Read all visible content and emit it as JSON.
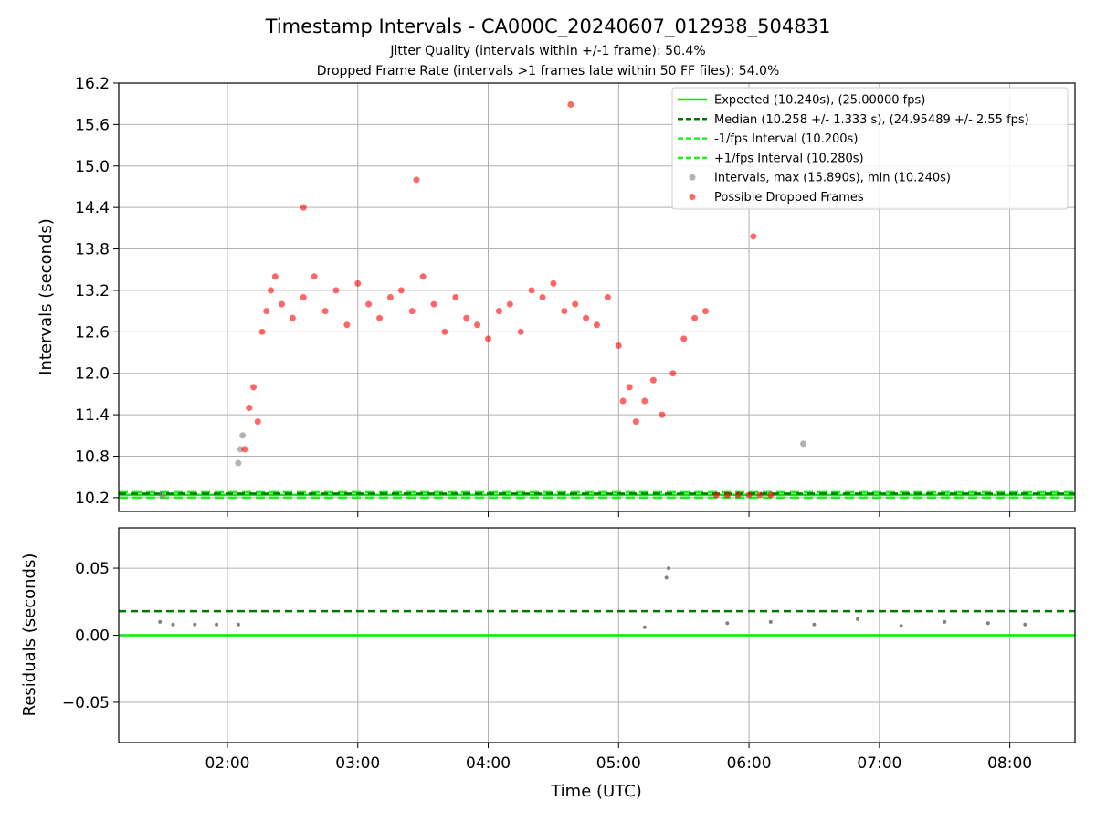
{
  "chart_data": [
    {
      "type": "scatter",
      "title": "Timestamp Intervals - CA000C_20240607_012938_504831",
      "subtitle_1": "Jitter Quality (intervals within +/-1 frame): 50.4%",
      "subtitle_2": "Dropped Frame Rate (intervals >1 frames late within 50 FF files): 54.0%",
      "ylabel": "Intervals (seconds)",
      "ylim": [
        10.0,
        16.2
      ],
      "xlim": [
        "01:10",
        "08:30"
      ],
      "y_ticks": [
        "10.2",
        "10.8",
        "11.4",
        "12.0",
        "12.6",
        "13.2",
        "13.8",
        "14.4",
        "15.0",
        "15.6",
        "16.2"
      ],
      "grid": true,
      "legend_position": "top-right",
      "legend": [
        "Expected (10.240s), (25.00000 fps)",
        "Median (10.258 +/- 1.333 s), (24.95489 +/- 2.55 fps)",
        "-1/fps Interval (10.200s)",
        "+1/fps Interval (10.280s)",
        "Intervals, max (15.890s), min (10.240s)",
        "Possible Dropped Frames"
      ],
      "lines": {
        "expected": 10.24,
        "median": 10.258,
        "minus_one_frame": 10.2,
        "plus_one_frame": 10.28
      },
      "colors": {
        "expected": "#00ee00",
        "median": "#007700",
        "bounds": "#22ee22",
        "intervals": "#808080",
        "dropped": "#ff0000"
      },
      "series": [
        {
          "name": "Intervals, max (15.890s), min (10.240s)",
          "x": [
            "01:30",
            "02:05",
            "02:06",
            "02:07",
            "06:25"
          ],
          "y": [
            10.24,
            10.7,
            10.9,
            11.1,
            10.98
          ]
        },
        {
          "name": "Possible Dropped Frames",
          "x": [
            "02:08",
            "02:10",
            "02:12",
            "02:14",
            "02:16",
            "02:18",
            "02:20",
            "02:22",
            "02:25",
            "02:30",
            "02:35",
            "02:40",
            "02:45",
            "02:50",
            "02:55",
            "03:00",
            "03:05",
            "03:10",
            "03:15",
            "03:20",
            "03:25",
            "03:30",
            "03:35",
            "03:40",
            "03:45",
            "03:50",
            "03:55",
            "04:00",
            "04:05",
            "04:10",
            "04:15",
            "04:20",
            "04:25",
            "04:30",
            "04:35",
            "04:40",
            "04:45",
            "04:50",
            "04:55",
            "05:00",
            "05:02",
            "05:05",
            "05:08",
            "05:12",
            "05:16",
            "05:20",
            "05:25",
            "05:30",
            "05:35",
            "05:40",
            "05:45",
            "05:50",
            "05:55",
            "06:00",
            "06:05",
            "06:10",
            "04:38",
            "02:35",
            "03:27",
            "06:02"
          ],
          "y": [
            10.9,
            11.5,
            11.8,
            11.3,
            12.6,
            12.9,
            13.2,
            13.4,
            13.0,
            12.8,
            13.1,
            13.4,
            12.9,
            13.2,
            12.7,
            13.3,
            13.0,
            12.8,
            13.1,
            13.2,
            12.9,
            13.4,
            13.0,
            12.6,
            13.1,
            12.8,
            12.7,
            12.5,
            12.9,
            13.0,
            12.6,
            13.2,
            13.1,
            13.3,
            12.9,
            13.0,
            12.8,
            12.7,
            13.1,
            12.4,
            11.6,
            11.8,
            11.3,
            11.6,
            11.9,
            11.4,
            12.0,
            12.5,
            12.8,
            12.9,
            10.24,
            10.24,
            10.24,
            10.24,
            10.24,
            10.24,
            15.89,
            14.4,
            14.8,
            13.98
          ]
        }
      ]
    },
    {
      "type": "scatter",
      "xlabel": "Time (UTC)",
      "ylabel": "Residuals (seconds)",
      "ylim": [
        -0.08,
        0.08
      ],
      "y_ticks": [
        "−0.05",
        "0.00",
        "0.05"
      ],
      "x_ticks": [
        "02:00",
        "03:00",
        "04:00",
        "05:00",
        "06:00",
        "07:00",
        "08:00"
      ],
      "lines": {
        "zero": 0.0,
        "median": 0.018
      },
      "series": [
        {
          "name": "residuals",
          "x": [
            "01:29",
            "01:35",
            "01:45",
            "01:55",
            "02:05",
            "05:12",
            "05:22",
            "05:23",
            "05:50",
            "06:10",
            "06:30",
            "06:50",
            "07:10",
            "07:30",
            "07:50",
            "08:07"
          ],
          "y": [
            0.01,
            0.008,
            0.008,
            0.008,
            0.008,
            0.006,
            0.043,
            0.05,
            0.009,
            0.01,
            0.008,
            0.012,
            0.007,
            0.01,
            0.009,
            0.008
          ]
        }
      ]
    }
  ]
}
